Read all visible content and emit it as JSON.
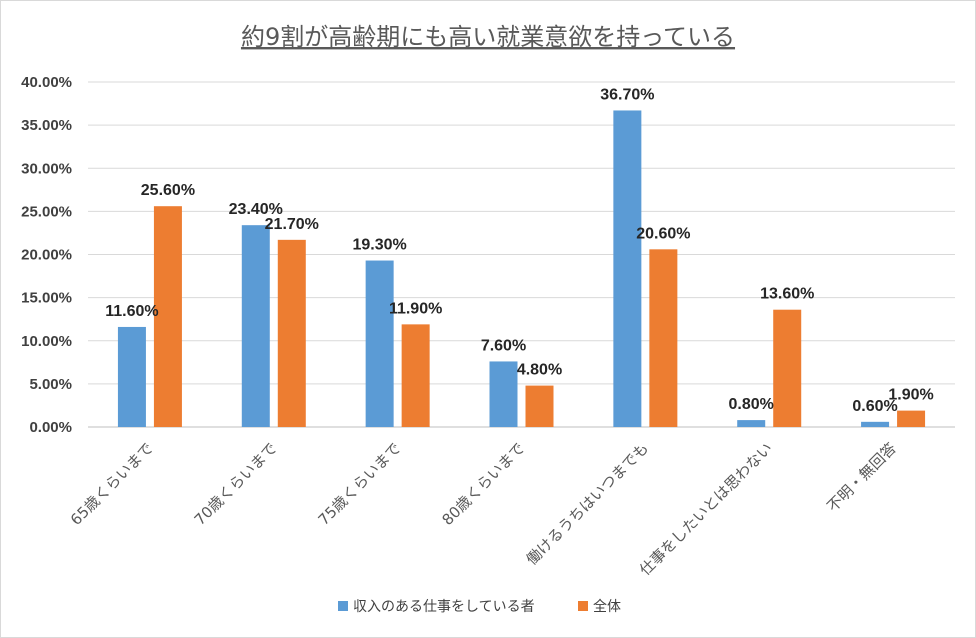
{
  "chart_data": {
    "type": "bar",
    "title": "約9割が高齢期にも高い就業意欲を持っている",
    "categories": [
      "65歳くらいまで",
      "70歳くらいまで",
      "75歳くらいまで",
      "80歳くらいまで",
      "働けるうちはいつまでも",
      "仕事をしたいとは思わない",
      "不明・無回答"
    ],
    "series": [
      {
        "name": "収入のある仕事をしている者",
        "color": "#5b9bd5",
        "values": [
          11.6,
          23.4,
          19.3,
          7.6,
          36.7,
          0.8,
          0.6
        ]
      },
      {
        "name": "全体",
        "color": "#ed7d31",
        "values": [
          25.6,
          21.7,
          11.9,
          4.8,
          20.6,
          13.6,
          1.9
        ]
      }
    ],
    "data_labels": [
      [
        "11.60%",
        "23.40%",
        "19.30%",
        "7.60%",
        "36.70%",
        "0.80%",
        "0.60%"
      ],
      [
        "25.60%",
        "21.70%",
        "11.90%",
        "4.80%",
        "20.60%",
        "13.60%",
        "1.90%"
      ]
    ],
    "yticks": [
      "0.00%",
      "5.00%",
      "10.00%",
      "15.00%",
      "20.00%",
      "25.00%",
      "30.00%",
      "35.00%",
      "40.00%"
    ],
    "ylim": [
      0,
      40
    ],
    "grid": true,
    "legend_position": "bottom"
  }
}
